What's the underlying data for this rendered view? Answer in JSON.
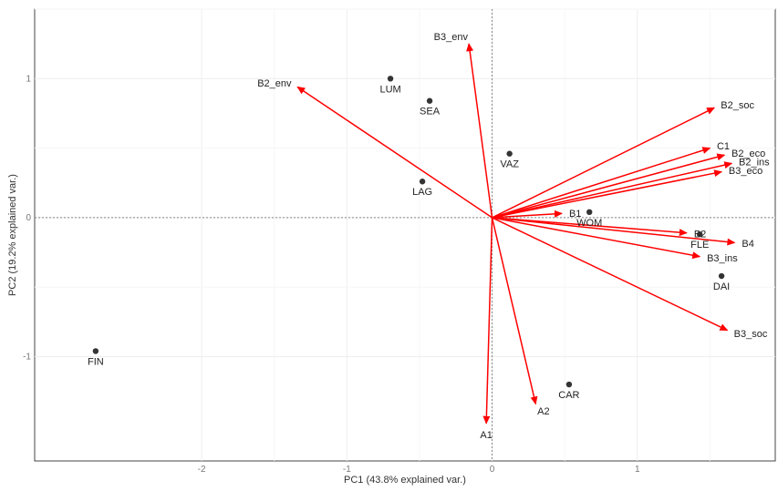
{
  "chart_data": {
    "type": "biplot",
    "xlabel": "PC1 (43.8% explained var.)",
    "ylabel": "PC2 (19.2% explained var.)",
    "xlim": [
      -3.15,
      1.95
    ],
    "ylim": [
      -1.75,
      1.5
    ],
    "x_ticks": [
      -2,
      -1,
      0,
      1
    ],
    "y_ticks": [
      -1,
      0,
      1
    ],
    "grid": true,
    "colors": {
      "arrow": "#ff0000",
      "point": "#333333",
      "axis_line": "#888888"
    },
    "samples": [
      {
        "name": "LUM",
        "x": -0.7,
        "y": 1.0
      },
      {
        "name": "SEA",
        "x": -0.43,
        "y": 0.84
      },
      {
        "name": "VAZ",
        "x": 0.12,
        "y": 0.46
      },
      {
        "name": "LAG",
        "x": -0.48,
        "y": 0.26
      },
      {
        "name": "WOM",
        "x": 0.67,
        "y": 0.04
      },
      {
        "name": "FLE",
        "x": 1.43,
        "y": -0.12
      },
      {
        "name": "DAI",
        "x": 1.58,
        "y": -0.42
      },
      {
        "name": "FIN",
        "x": -2.73,
        "y": -0.96
      },
      {
        "name": "CAR",
        "x": 0.53,
        "y": -1.2
      }
    ],
    "loadings": [
      {
        "name": "B3_env",
        "x": -0.16,
        "y": 1.25
      },
      {
        "name": "B2_env",
        "x": -1.34,
        "y": 0.94
      },
      {
        "name": "B2_soc",
        "x": 1.53,
        "y": 0.79
      },
      {
        "name": "C1",
        "x": 1.5,
        "y": 0.5
      },
      {
        "name": "B2_eco",
        "x": 1.6,
        "y": 0.45
      },
      {
        "name": "B2_ins",
        "x": 1.65,
        "y": 0.39
      },
      {
        "name": "B3_eco",
        "x": 1.58,
        "y": 0.33
      },
      {
        "name": "B1",
        "x": 0.48,
        "y": 0.03
      },
      {
        "name": "B2",
        "x": 1.34,
        "y": -0.11
      },
      {
        "name": "B4",
        "x": 1.67,
        "y": -0.18
      },
      {
        "name": "B3_ins",
        "x": 1.43,
        "y": -0.28
      },
      {
        "name": "B3_soc",
        "x": 1.62,
        "y": -0.81
      },
      {
        "name": "A1",
        "x": -0.04,
        "y": -1.48
      },
      {
        "name": "A2",
        "x": 0.3,
        "y": -1.34
      }
    ]
  }
}
